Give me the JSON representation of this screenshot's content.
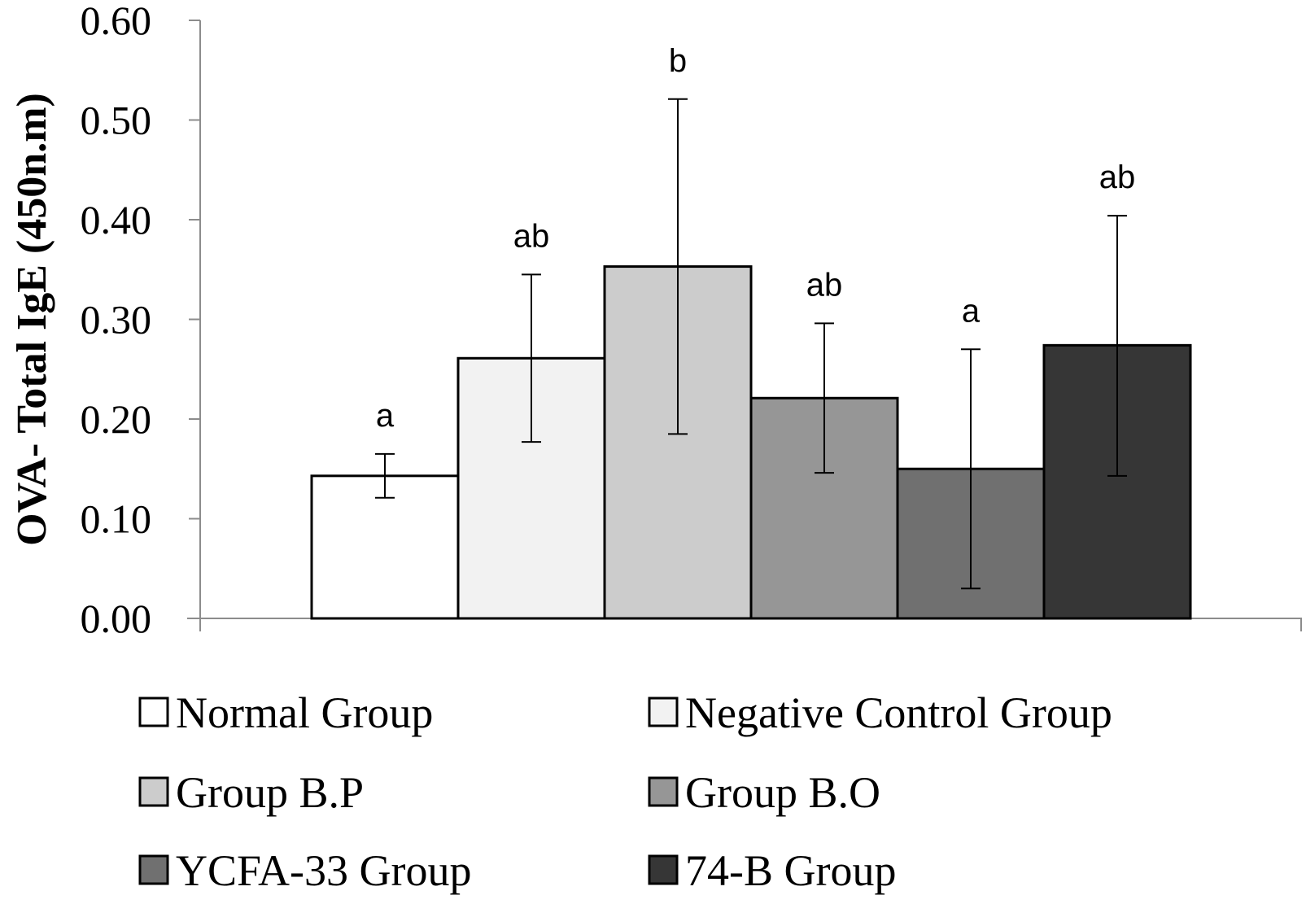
{
  "chart_data": {
    "type": "bar",
    "title": "",
    "xlabel": "",
    "ylabel": "OVA- Total IgE (450n.m)",
    "ylim": [
      0,
      0.6
    ],
    "yticks": [
      "0.00",
      "0.10",
      "0.20",
      "0.30",
      "0.40",
      "0.50",
      "0.60"
    ],
    "legend_position": "bottom",
    "series": [
      {
        "name": "Normal Group",
        "value": 0.143,
        "error_low": 0.121,
        "error_high": 0.165,
        "significance": "a",
        "color": "#ffffff"
      },
      {
        "name": "Negative Control Group",
        "value": 0.261,
        "error_low": 0.177,
        "error_high": 0.345,
        "significance": "ab",
        "color": "#f2f2f2"
      },
      {
        "name": "Group B.P",
        "value": 0.353,
        "error_low": 0.185,
        "error_high": 0.521,
        "significance": "b",
        "color": "#cccccc"
      },
      {
        "name": "Group B.O",
        "value": 0.221,
        "error_low": 0.146,
        "error_high": 0.296,
        "significance": "ab",
        "color": "#969696"
      },
      {
        "name": "YCFA-33 Group",
        "value": 0.15,
        "error_low": 0.03,
        "error_high": 0.27,
        "significance": "a",
        "color": "#707070"
      },
      {
        "name": "74-B Group",
        "value": 0.274,
        "error_low": 0.143,
        "error_high": 0.404,
        "significance": "ab",
        "color": "#363636"
      }
    ]
  }
}
